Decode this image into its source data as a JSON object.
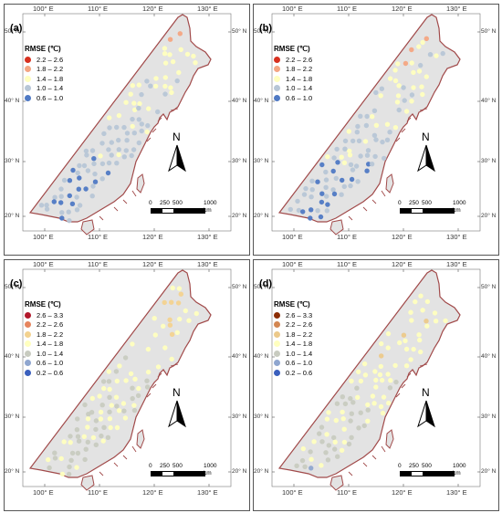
{
  "axes": {
    "x_ticks": [
      "100° E",
      "110° E",
      "120° E",
      "130° E"
    ],
    "y_ticks": [
      "50° N",
      "40° N",
      "30° N",
      "20° N"
    ]
  },
  "north_label": "N",
  "scale": {
    "labels": [
      "0",
      "250",
      "500",
      "1000"
    ],
    "unit": "km"
  },
  "colors": {
    "land": "#e3e3e3",
    "border": "#a14a4a",
    "ocean": "#ffffff"
  },
  "panels": [
    {
      "label": "(a)",
      "legend_title": "RMSE (℃)",
      "legend": [
        {
          "range": "2.2 – 2.6",
          "color": "#d7301f"
        },
        {
          "range": "1.8 – 2.2",
          "color": "#f4a582"
        },
        {
          "range": "1.4 – 1.8",
          "color": "#ffffbf"
        },
        {
          "range": "1.0 – 1.4",
          "color": "#b7c6d6"
        },
        {
          "range": "0.6 – 1.0",
          "color": "#4f79c4"
        }
      ]
    },
    {
      "label": "(b)",
      "legend_title": "RMSE (℃)",
      "legend": [
        {
          "range": "2.2 – 2.6",
          "color": "#d7301f"
        },
        {
          "range": "1.8 – 2.2",
          "color": "#f4a582"
        },
        {
          "range": "1.4 – 1.8",
          "color": "#ffffbf"
        },
        {
          "range": "1.0 – 1.4",
          "color": "#b7c6d6"
        },
        {
          "range": "0.6 – 1.0",
          "color": "#4f79c4"
        }
      ]
    },
    {
      "label": "(c)",
      "legend_title": "RMSE (℃)",
      "legend": [
        {
          "range": "2.6 – 3.3",
          "color": "#b2182b"
        },
        {
          "range": "2.2 – 2.6",
          "color": "#e6855e"
        },
        {
          "range": "1.8 – 2.2",
          "color": "#f3d28f"
        },
        {
          "range": "1.4 – 1.8",
          "color": "#ffffbf"
        },
        {
          "range": "1.0 – 1.4",
          "color": "#c8cbc0"
        },
        {
          "range": "0.6 – 1.0",
          "color": "#8fa6cf"
        },
        {
          "range": "0.2 – 0.6",
          "color": "#3a5fbd"
        }
      ]
    },
    {
      "label": "(d)",
      "legend_title": "RMSE (℃)",
      "legend": [
        {
          "range": "2.6 – 3.3",
          "color": "#8c2d04"
        },
        {
          "range": "2.2 – 2.6",
          "color": "#d38752"
        },
        {
          "range": "1.8 – 2.2",
          "color": "#ecc98a"
        },
        {
          "range": "1.4 – 1.8",
          "color": "#ffffbf"
        },
        {
          "range": "1.0 – 1.4",
          "color": "#c8cbc0"
        },
        {
          "range": "0.6 – 1.0",
          "color": "#8fa6cf"
        },
        {
          "range": "0.2 – 0.6",
          "color": "#3a5fbd"
        }
      ]
    }
  ]
}
